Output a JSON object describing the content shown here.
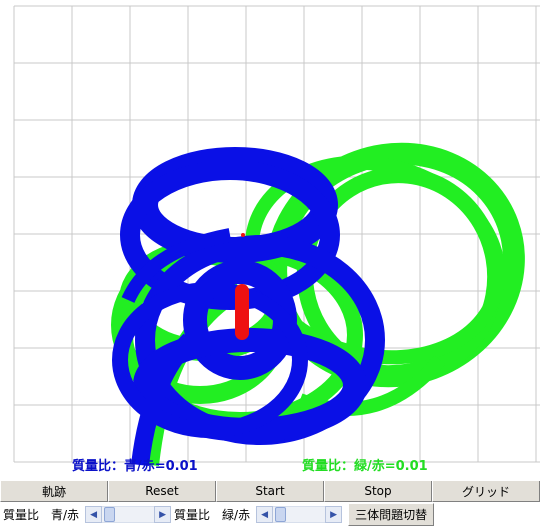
{
  "labels": {
    "ratio_blue": "質量比：青/赤=0.01",
    "ratio_green": "質量比：緑/赤=0.01"
  },
  "buttons": {
    "trail": "軌跡",
    "reset": "Reset",
    "start": "Start",
    "stop": "Stop",
    "grid": "グリッド"
  },
  "controls": {
    "blue_label": "質量比　青/赤",
    "green_label": "質量比　緑/赤",
    "blue_slider_value": 0.01,
    "green_slider_value": 0.01,
    "toggle": "三体問題切替"
  },
  "colors": {
    "blue_body": "#0a10e6",
    "green_body": "#22ee22",
    "red_body": "#ee1111",
    "grid": "#c8c8c8"
  }
}
